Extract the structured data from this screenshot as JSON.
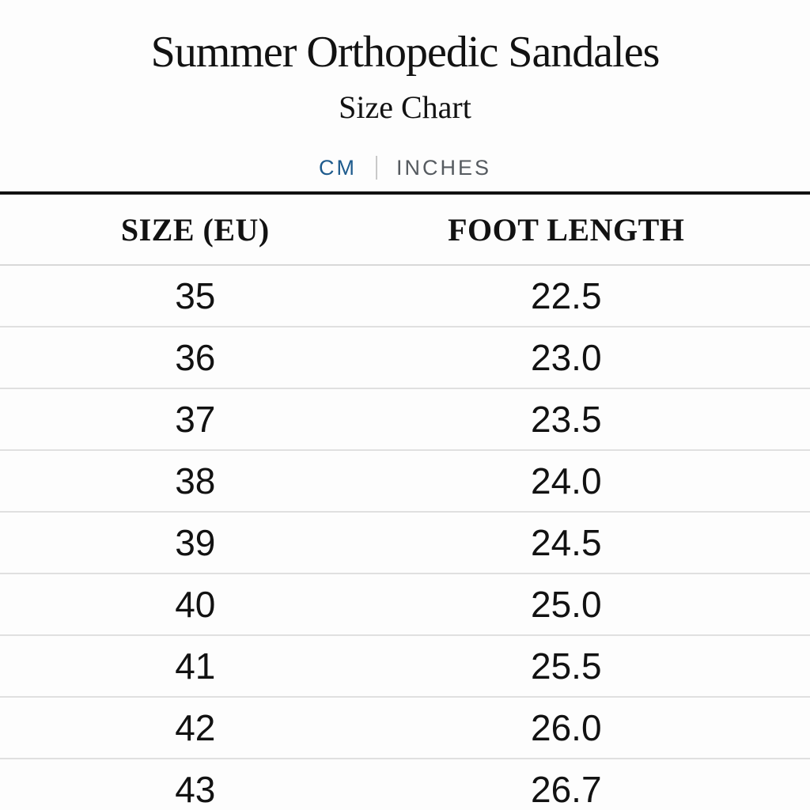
{
  "header": {
    "title": "Summer Orthopedic Sandales",
    "subtitle": "Size Chart"
  },
  "unit_toggle": {
    "cm_label": "CM",
    "inches_label": "INCHES",
    "active_unit": "CM"
  },
  "table": {
    "columns": [
      "SIZE (EU)",
      "FOOT LENGTH"
    ],
    "rows": [
      {
        "size": "35",
        "foot_length": "22.5"
      },
      {
        "size": "36",
        "foot_length": "23.0"
      },
      {
        "size": "37",
        "foot_length": "23.5"
      },
      {
        "size": "38",
        "foot_length": "24.0"
      },
      {
        "size": "39",
        "foot_length": "24.5"
      },
      {
        "size": "40",
        "foot_length": "25.0"
      },
      {
        "size": "41",
        "foot_length": "25.5"
      },
      {
        "size": "42",
        "foot_length": "26.0"
      },
      {
        "size": "43",
        "foot_length": "26.7"
      }
    ]
  },
  "colors": {
    "accent_blue": "#1e5b8d",
    "inactive_gray": "#565b60",
    "divider_gray": "#c9c9c9",
    "heavy_line": "#111111",
    "row_line": "#e0e0e0",
    "background": "#fdfdfd"
  }
}
